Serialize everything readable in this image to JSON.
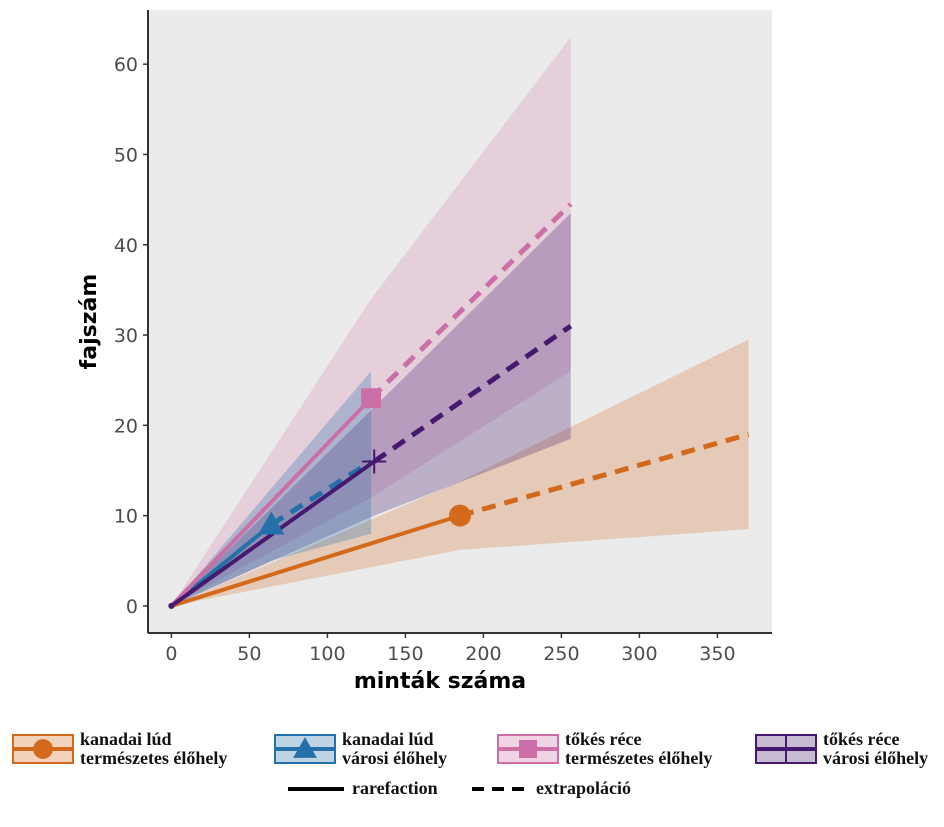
{
  "chart_data": {
    "type": "line",
    "xlabel": "minták száma",
    "ylabel": "fajszám",
    "xlim": [
      -15,
      385
    ],
    "ylim": [
      -3,
      66
    ],
    "xticks": [
      0,
      50,
      100,
      150,
      200,
      250,
      300,
      350
    ],
    "yticks": [
      0,
      10,
      20,
      30,
      40,
      50,
      60
    ],
    "grid": false,
    "legend_position": "bottom",
    "series": [
      {
        "name_line1": "kanadai lúd",
        "name_line2": "természetes élőhely",
        "color": "#d3691a",
        "marker": "circle",
        "observed": [
          185,
          10
        ],
        "rarefaction": [
          [
            0,
            0
          ],
          [
            185,
            10
          ]
        ],
        "extrapolation": [
          [
            185,
            10
          ],
          [
            370,
            19
          ]
        ],
        "band": {
          "x": [
            0,
            185,
            370
          ],
          "lower": [
            0,
            6.2,
            8.5
          ],
          "upper": [
            0,
            13.8,
            29.5
          ]
        }
      },
      {
        "name_line1": "kanadai lúd",
        "name_line2": "városi élőhely",
        "color": "#2470a8",
        "marker": "triangle",
        "observed": [
          64,
          9
        ],
        "rarefaction": [
          [
            0,
            0
          ],
          [
            64,
            9
          ]
        ],
        "extrapolation": [
          [
            64,
            9
          ],
          [
            128,
            16
          ]
        ],
        "band": {
          "x": [
            0,
            64,
            128
          ],
          "lower": [
            0,
            5,
            8
          ],
          "upper": [
            0,
            13,
            26
          ]
        }
      },
      {
        "name_line1": "tőkés réce",
        "name_line2": "természetes élőhely",
        "color": "#cc6fa6",
        "marker": "square",
        "observed": [
          128,
          23
        ],
        "rarefaction": [
          [
            0,
            0
          ],
          [
            128,
            23
          ]
        ],
        "extrapolation": [
          [
            128,
            23
          ],
          [
            256,
            44.5
          ]
        ],
        "band": {
          "x": [
            0,
            128,
            256
          ],
          "lower": [
            0,
            12,
            26
          ],
          "upper": [
            0,
            34,
            63
          ]
        }
      },
      {
        "name_line1": "tőkés réce",
        "name_line2": "városi élőhely",
        "color": "#46196e",
        "marker": "cross",
        "observed": [
          130,
          16
        ],
        "rarefaction": [
          [
            0,
            0
          ],
          [
            130,
            16
          ]
        ],
        "extrapolation": [
          [
            130,
            16
          ],
          [
            256,
            31
          ]
        ],
        "band": {
          "x": [
            0,
            130,
            256
          ],
          "lower": [
            0,
            10,
            18.5
          ],
          "upper": [
            0,
            22,
            43.5
          ]
        }
      }
    ],
    "line_types": {
      "rarefaction": "rarefaction",
      "extrapolation": "extrapoláció"
    }
  },
  "colors": {
    "panel_bg": "#ebebeb",
    "axis": "#333333"
  }
}
